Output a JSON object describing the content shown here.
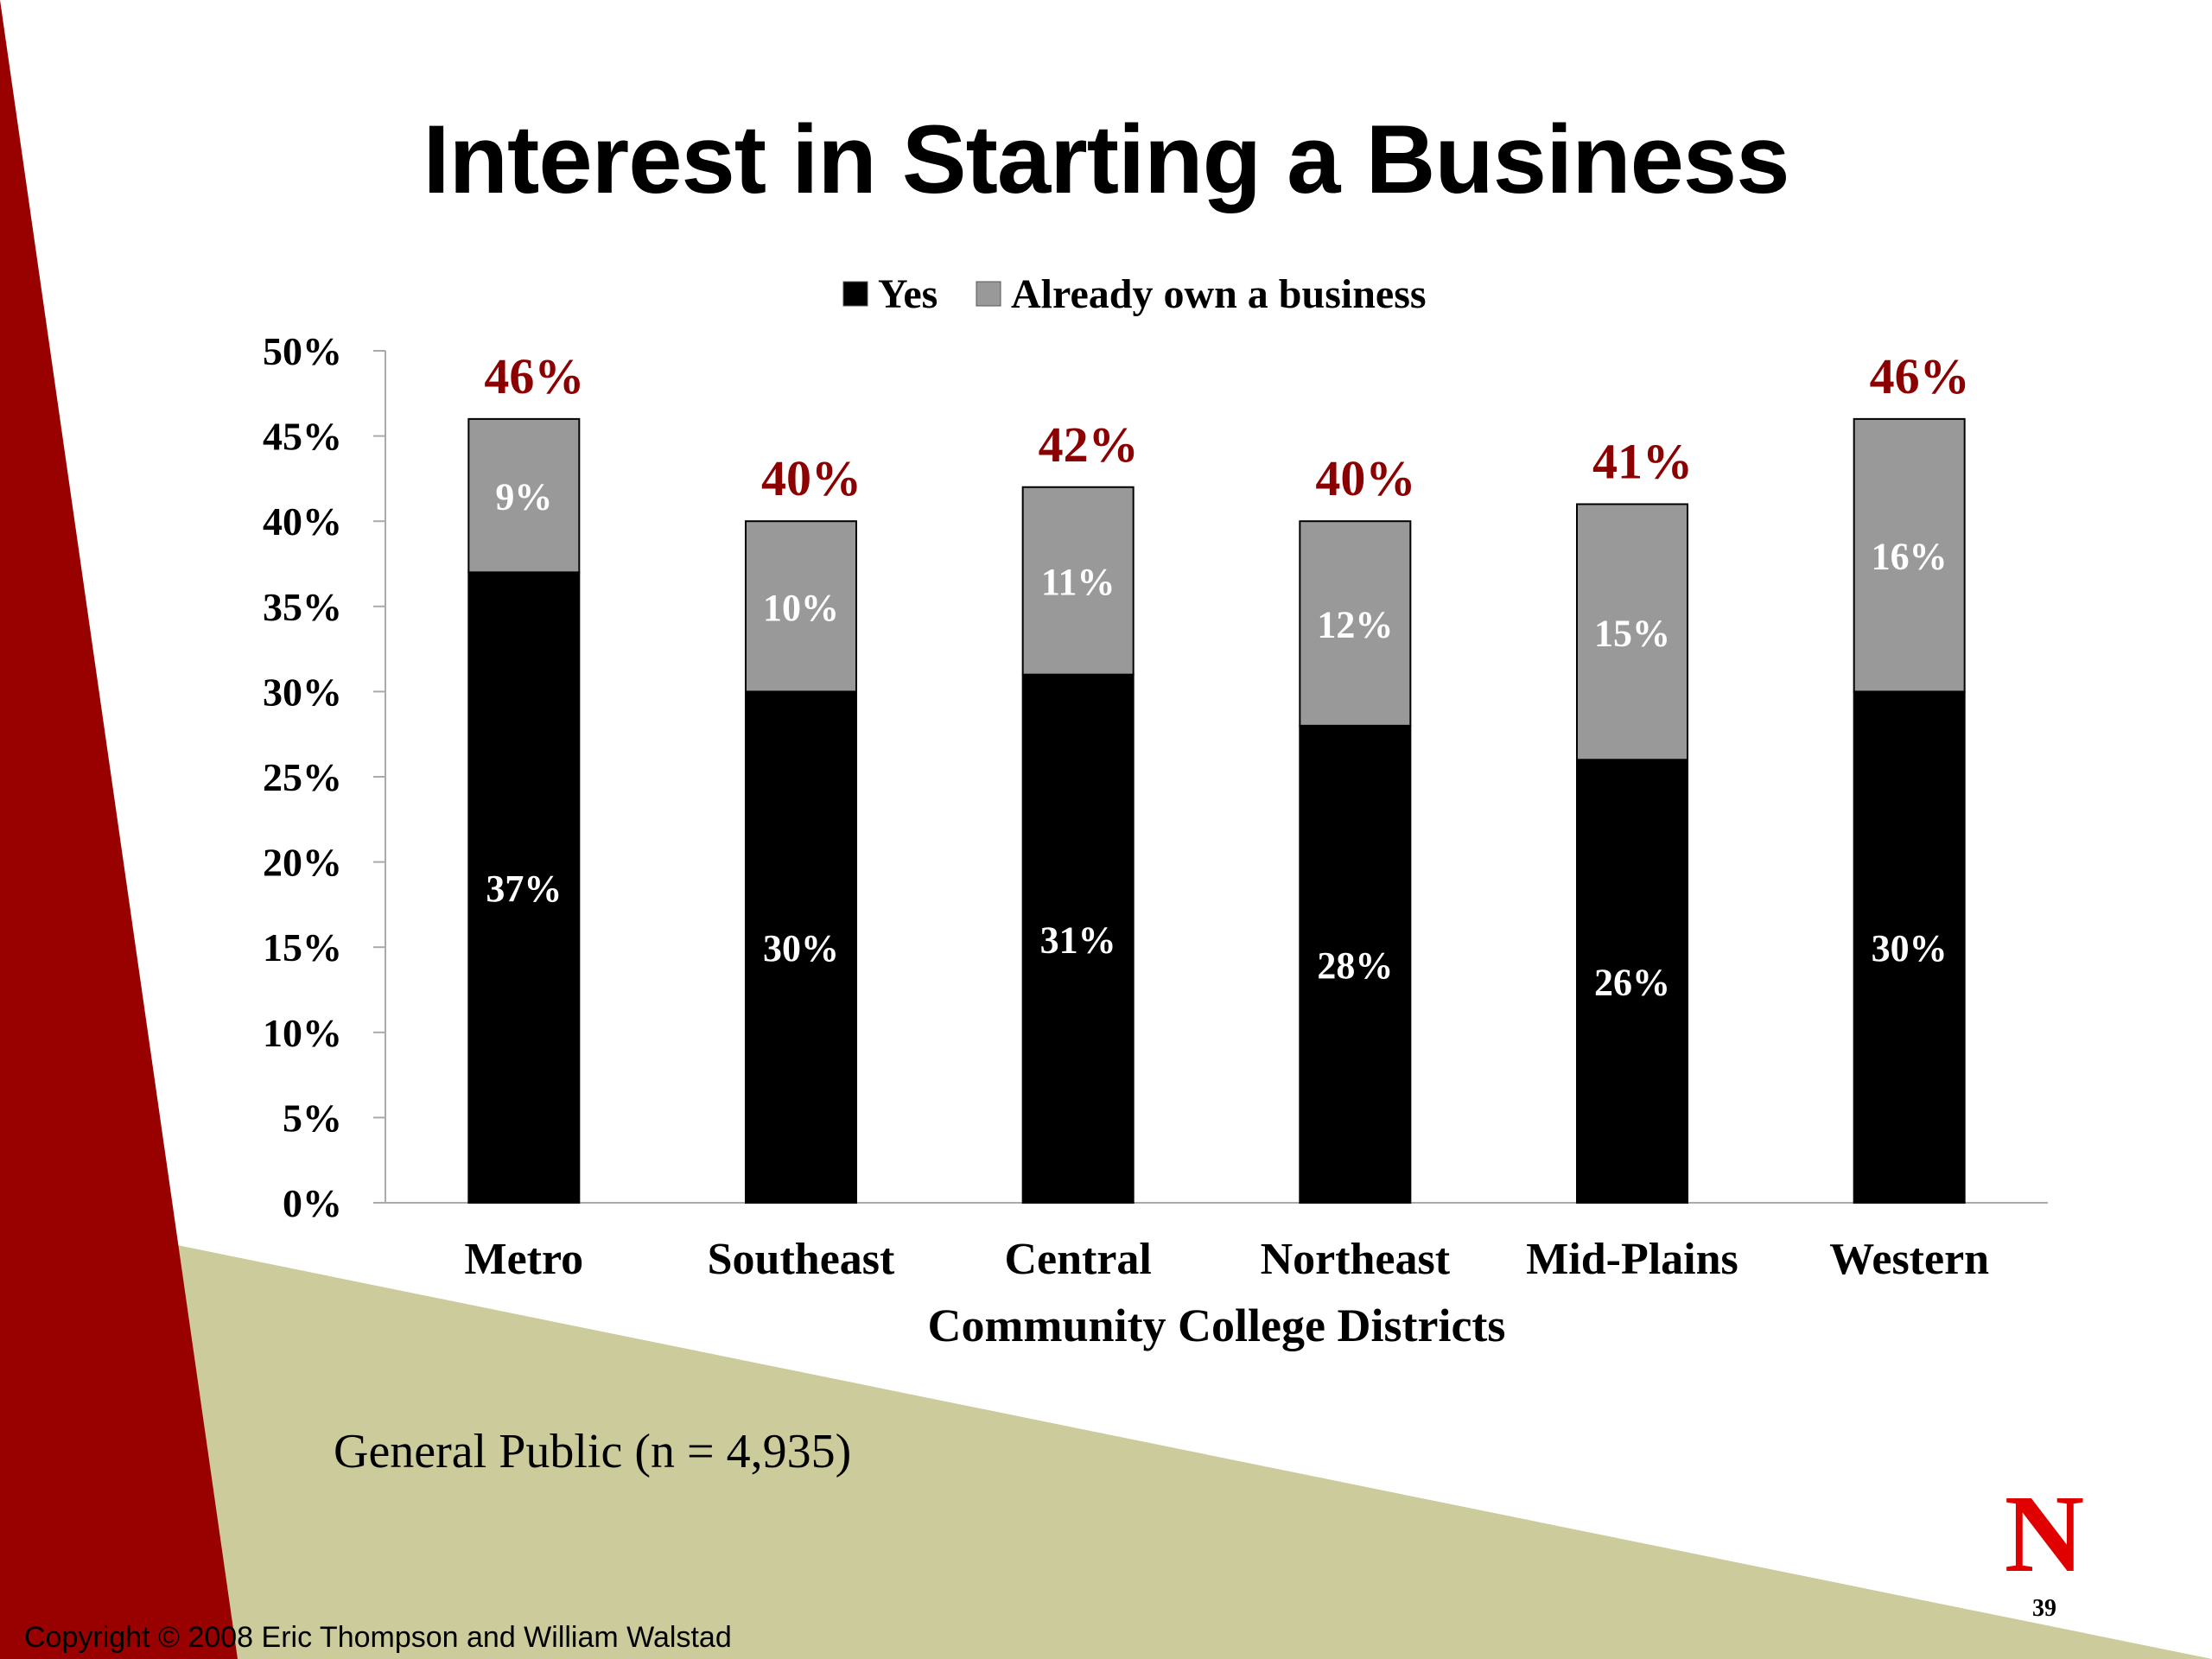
{
  "slide": {
    "title": "Interest in Starting a Business",
    "note": "General Public (n = 4,935)",
    "copyright": "Copyright © 2008 Eric Thompson and William Walstad",
    "slide_number": "39",
    "logo": "N",
    "colors": {
      "maroon": "#990000",
      "khaki": "#CBCB9B",
      "logo_red": "#E00000",
      "total_label": "#8B0000"
    }
  },
  "chart_data": {
    "type": "bar",
    "stacked": true,
    "categories": [
      "Metro",
      "Southeast",
      "Central",
      "Northeast",
      "Mid-Plains",
      "Western"
    ],
    "series": [
      {
        "name": "Yes",
        "values": [
          37,
          30,
          31,
          28,
          26,
          30
        ],
        "labels": [
          "37%",
          "30%",
          "31%",
          "28%",
          "26%",
          "30%"
        ],
        "color": "#000000"
      },
      {
        "name": "Already own a business",
        "values": [
          9,
          10,
          11,
          12,
          15,
          16
        ],
        "labels": [
          "9%",
          "10%",
          "11%",
          "12%",
          "15%",
          "16%"
        ],
        "color": "#999999"
      }
    ],
    "totals": [
      46,
      40,
      42,
      40,
      41,
      46
    ],
    "total_labels": [
      "46%",
      "40%",
      "42%",
      "40%",
      "41%",
      "46%"
    ],
    "xlabel": "Community College Districts",
    "ylabel": "",
    "ylim": [
      0,
      50
    ],
    "yticks": [
      "0%",
      "5%",
      "10%",
      "15%",
      "20%",
      "25%",
      "30%",
      "35%",
      "40%",
      "45%",
      "50%"
    ],
    "legend_position": "top",
    "grid": false
  }
}
